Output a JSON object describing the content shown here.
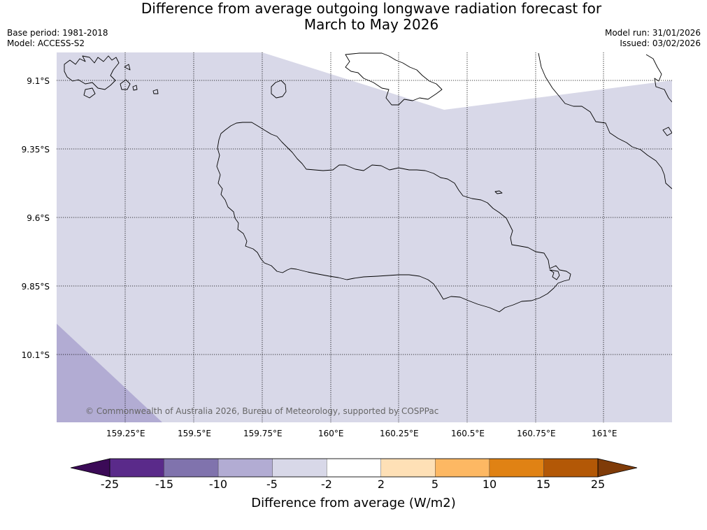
{
  "title": {
    "line1": "Difference from average outgoing longwave radiation forecast for",
    "line2": "March to May 2026"
  },
  "meta": {
    "base_period": "Base period: 1981-2018",
    "model": "Model: ACCESS-S2",
    "model_run": "Model run: 31/01/2026",
    "issued": "Issued: 03/02/2026"
  },
  "map": {
    "copyright": "© Commonwealth of Australia 2026, Bureau of Meteorology, supported by COSPPac",
    "lat_labels": [
      "9.1°S",
      "9.35°S",
      "9.6°S",
      "9.85°S",
      "10.1°S"
    ],
    "lon_labels": [
      "159.25°E",
      "159.5°E",
      "159.75°E",
      "160°E",
      "160.25°E",
      "160.5°E",
      "160.75°E",
      "161°E"
    ],
    "colors": {
      "main_fill": "#d8d8e8",
      "corner_fill": "#b2acd3",
      "coastline": "#000000"
    }
  },
  "colorbar": {
    "title": "Difference from average (W/m2)",
    "tick_labels": [
      "-25",
      "-15",
      "-10",
      "-5",
      "-2",
      "2",
      "5",
      "10",
      "15",
      "25"
    ],
    "colors": [
      "#5a2a8a",
      "#8073ad",
      "#b2acd3",
      "#d8d8e8",
      "#ffffff",
      "#fee0b6",
      "#fdb863",
      "#e08214",
      "#b35806"
    ],
    "under_color": "#3b0a57",
    "over_color": "#7f3b08"
  }
}
